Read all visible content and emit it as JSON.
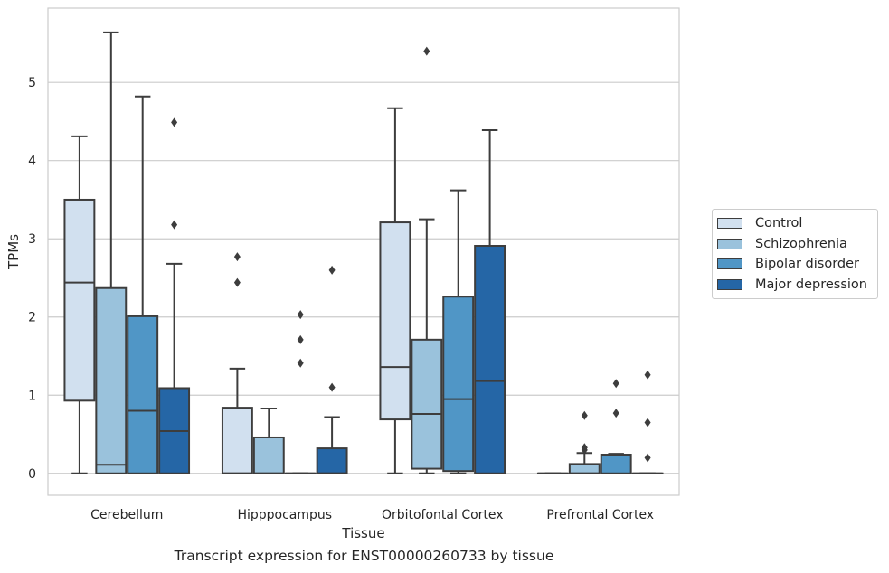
{
  "chart_data": {
    "type": "box",
    "title": "Transcript expression for ENST00000260733 by tissue",
    "xlabel": "Tissue",
    "ylabel": "TPMs",
    "ylim": [
      -0.28,
      5.95
    ],
    "yticks": [
      0,
      1,
      2,
      3,
      4,
      5
    ],
    "grid": "horizontal",
    "legend_position": "right",
    "categories": [
      "Cerebellum",
      "Hipppocampus",
      "Orbitofontal Cortex",
      "Prefrontal Cortex"
    ],
    "series": [
      {
        "name": "Control",
        "color": "#d1e0ef",
        "boxes": [
          {
            "whisker_low": 0,
            "q1": 0.93,
            "median": 2.44,
            "q3": 3.5,
            "whisker_high": 4.31,
            "outliers": []
          },
          {
            "whisker_low": 0,
            "q1": 0,
            "median": 0,
            "q3": 0.84,
            "whisker_high": 1.34,
            "outliers": [
              2.44,
              2.77
            ]
          },
          {
            "whisker_low": 0,
            "q1": 0.69,
            "median": 1.36,
            "q3": 3.21,
            "whisker_high": 4.67,
            "outliers": []
          },
          {
            "whisker_low": 0,
            "q1": 0,
            "median": 0,
            "q3": 0,
            "whisker_high": 0,
            "outliers": []
          }
        ]
      },
      {
        "name": "Schizophrenia",
        "color": "#9ac2dc",
        "boxes": [
          {
            "whisker_low": 0,
            "q1": 0,
            "median": 0.11,
            "q3": 2.37,
            "whisker_high": 5.64,
            "outliers": []
          },
          {
            "whisker_low": 0,
            "q1": 0,
            "median": 0,
            "q3": 0.46,
            "whisker_high": 0.83,
            "outliers": []
          },
          {
            "whisker_low": 0,
            "q1": 0.06,
            "median": 0.76,
            "q3": 1.71,
            "whisker_high": 3.25,
            "outliers": [
              5.4
            ]
          },
          {
            "whisker_low": 0,
            "q1": 0,
            "median": 0,
            "q3": 0.12,
            "whisker_high": 0.26,
            "outliers": [
              0.3,
              0.33,
              0.74
            ]
          }
        ]
      },
      {
        "name": "Bipolar disorder",
        "color": "#5096c6",
        "boxes": [
          {
            "whisker_low": 0,
            "q1": 0,
            "median": 0.8,
            "q3": 2.01,
            "whisker_high": 4.82,
            "outliers": []
          },
          {
            "whisker_low": 0,
            "q1": 0,
            "median": 0,
            "q3": 0,
            "whisker_high": 0,
            "outliers": [
              1.41,
              1.71,
              2.03
            ]
          },
          {
            "whisker_low": 0,
            "q1": 0.03,
            "median": 0.95,
            "q3": 2.26,
            "whisker_high": 3.62,
            "outliers": []
          },
          {
            "whisker_low": 0,
            "q1": 0,
            "median": 0.24,
            "q3": 0.24,
            "whisker_high": 0.25,
            "outliers": [
              0.77,
              1.15
            ]
          }
        ]
      },
      {
        "name": "Major depression",
        "color": "#2566a6",
        "boxes": [
          {
            "whisker_low": 0,
            "q1": 0,
            "median": 0.54,
            "q3": 1.09,
            "whisker_high": 2.68,
            "outliers": [
              3.18,
              4.49
            ]
          },
          {
            "whisker_low": 0,
            "q1": 0,
            "median": 0,
            "q3": 0.32,
            "whisker_high": 0.72,
            "outliers": [
              1.1,
              2.6
            ]
          },
          {
            "whisker_low": 0,
            "q1": 0,
            "median": 1.18,
            "q3": 2.91,
            "whisker_high": 4.39,
            "outliers": []
          },
          {
            "whisker_low": 0,
            "q1": 0,
            "median": 0,
            "q3": 0,
            "whisker_high": 0,
            "outliers": [
              0.2,
              0.65,
              1.26
            ]
          }
        ]
      }
    ]
  }
}
